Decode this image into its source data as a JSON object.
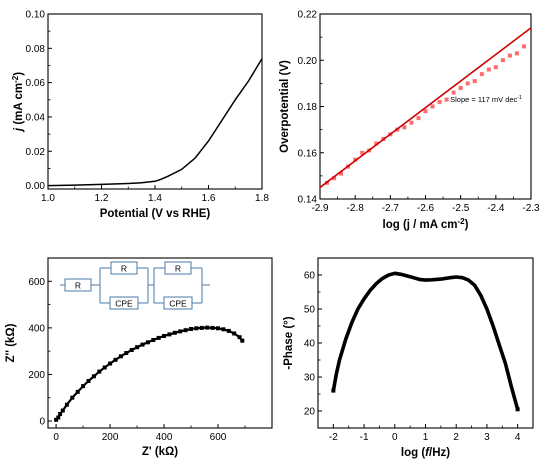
{
  "chart_data": [
    {
      "id": "lsv",
      "type": "line",
      "xlabel": "Potential (V vs RHE)",
      "ylabel": "j (mA cm⁻²)",
      "ylabel_parts": [
        "j",
        " (mA cm",
        "-2",
        ")"
      ],
      "xlim": [
        1.0,
        1.8
      ],
      "ylim": [
        -0.002,
        0.1
      ],
      "xticks": [
        "1.0",
        "1.2",
        "1.4",
        "1.6",
        "1.8"
      ],
      "yticks": [
        "0.00",
        "0.02",
        "0.04",
        "0.06",
        "0.08",
        "0.10"
      ],
      "grid": false,
      "series": [
        {
          "x": [
            1.0,
            1.1,
            1.2,
            1.3,
            1.35,
            1.4,
            1.42,
            1.45,
            1.5,
            1.55,
            1.6,
            1.65,
            1.7,
            1.75,
            1.8
          ],
          "y": [
            0.0,
            0.0003,
            0.0007,
            0.0012,
            0.0017,
            0.0025,
            0.0035,
            0.0055,
            0.0095,
            0.016,
            0.026,
            0.038,
            0.05,
            0.061,
            0.074
          ]
        }
      ]
    },
    {
      "id": "tafel",
      "type": "scatter",
      "xlabel": "log (j / mA cm⁻²)",
      "xlabel_parts": [
        "log (j / mA cm",
        "-2",
        ")"
      ],
      "ylabel": "Overpotential (V)",
      "xlim": [
        -2.9,
        -2.3
      ],
      "ylim": [
        0.14,
        0.22
      ],
      "xticks": [
        "-2.9",
        "-2.8",
        "-2.7",
        "-2.6",
        "-2.5",
        "-2.4",
        "-2.3"
      ],
      "yticks": [
        "0.14",
        "0.16",
        "0.18",
        "0.20",
        "0.22"
      ],
      "annotation": "Slope = 117 mV dec⁻¹",
      "annotation_parts": [
        "Slope = 117 mV dec",
        "-1"
      ],
      "annotation_pos": [
        -2.53,
        0.182
      ],
      "grid": false,
      "series": [
        {
          "x": [
            -2.88,
            -2.86,
            -2.84,
            -2.82,
            -2.8,
            -2.78,
            -2.76,
            -2.74,
            -2.72,
            -2.7,
            -2.68,
            -2.66,
            -2.64,
            -2.62,
            -2.6,
            -2.58,
            -2.56,
            -2.54,
            -2.52,
            -2.5,
            -2.48,
            -2.46,
            -2.44,
            -2.42,
            -2.4,
            -2.38,
            -2.36,
            -2.34,
            -2.32
          ],
          "y": [
            0.147,
            0.149,
            0.151,
            0.154,
            0.157,
            0.16,
            0.161,
            0.164,
            0.166,
            0.168,
            0.17,
            0.171,
            0.173,
            0.175,
            0.178,
            0.18,
            0.182,
            0.183,
            0.186,
            0.188,
            0.19,
            0.191,
            0.194,
            0.196,
            0.197,
            0.2,
            0.202,
            0.203,
            0.206
          ]
        },
        {
          "x": [
            -2.9,
            -2.3
          ],
          "y": [
            0.145,
            0.214
          ]
        }
      ]
    },
    {
      "id": "nyquist",
      "type": "scatter",
      "xlabel": "Z' (kΩ)",
      "ylabel": "Z'' (kΩ)",
      "xlim": [
        -30,
        800
      ],
      "ylim": [
        -30,
        700
      ],
      "xticks": [
        "0",
        "200",
        "400",
        "600"
      ],
      "yticks": [
        "0",
        "200",
        "400",
        "600"
      ],
      "circuit_labels": [
        "R",
        "R",
        "CPE",
        "R",
        "CPE"
      ],
      "grid": false,
      "series": [
        {
          "x": [
            0,
            8,
            15,
            25,
            40,
            60,
            80,
            100,
            120,
            140,
            160,
            180,
            200,
            220,
            240,
            260,
            280,
            300,
            320,
            340,
            360,
            380,
            400,
            420,
            440,
            460,
            480,
            500,
            520,
            540,
            560,
            580,
            600,
            620,
            640,
            660,
            680,
            690
          ],
          "y": [
            5,
            15,
            30,
            45,
            70,
            100,
            125,
            150,
            172,
            192,
            212,
            230,
            247,
            263,
            278,
            292,
            305,
            317,
            328,
            338,
            348,
            357,
            365,
            372,
            379,
            385,
            390,
            395,
            398,
            400,
            401,
            400,
            398,
            394,
            387,
            376,
            360,
            345
          ]
        }
      ]
    },
    {
      "id": "bode",
      "type": "line",
      "xlabel": "log (f/Hz)",
      "xlabel_parts": [
        "log (",
        "f",
        "/Hz)"
      ],
      "ylabel": "-Phase (°)",
      "xlim": [
        -2.5,
        4.5
      ],
      "ylim": [
        15,
        65
      ],
      "xticks": [
        "-2",
        "-1",
        "0",
        "1",
        "2",
        "3",
        "4"
      ],
      "yticks": [
        "20",
        "30",
        "40",
        "50",
        "60"
      ],
      "grid": false,
      "series": [
        {
          "x": [
            -2.0,
            -1.9,
            -1.8,
            -1.6,
            -1.4,
            -1.2,
            -1.0,
            -0.8,
            -0.6,
            -0.4,
            -0.2,
            0.0,
            0.2,
            0.5,
            0.8,
            1.0,
            1.2,
            1.5,
            1.8,
            2.0,
            2.2,
            2.4,
            2.6,
            2.8,
            3.0,
            3.2,
            3.4,
            3.6,
            3.8,
            4.0
          ],
          "y": [
            26,
            31,
            35,
            41,
            46,
            50,
            53,
            55.5,
            57.5,
            59,
            60,
            60.5,
            60.2,
            59.5,
            58.7,
            58.5,
            58.6,
            58.8,
            59.2,
            59.4,
            59.2,
            58.5,
            57,
            54,
            50,
            45,
            39.5,
            34,
            27,
            20.5
          ]
        }
      ]
    }
  ]
}
